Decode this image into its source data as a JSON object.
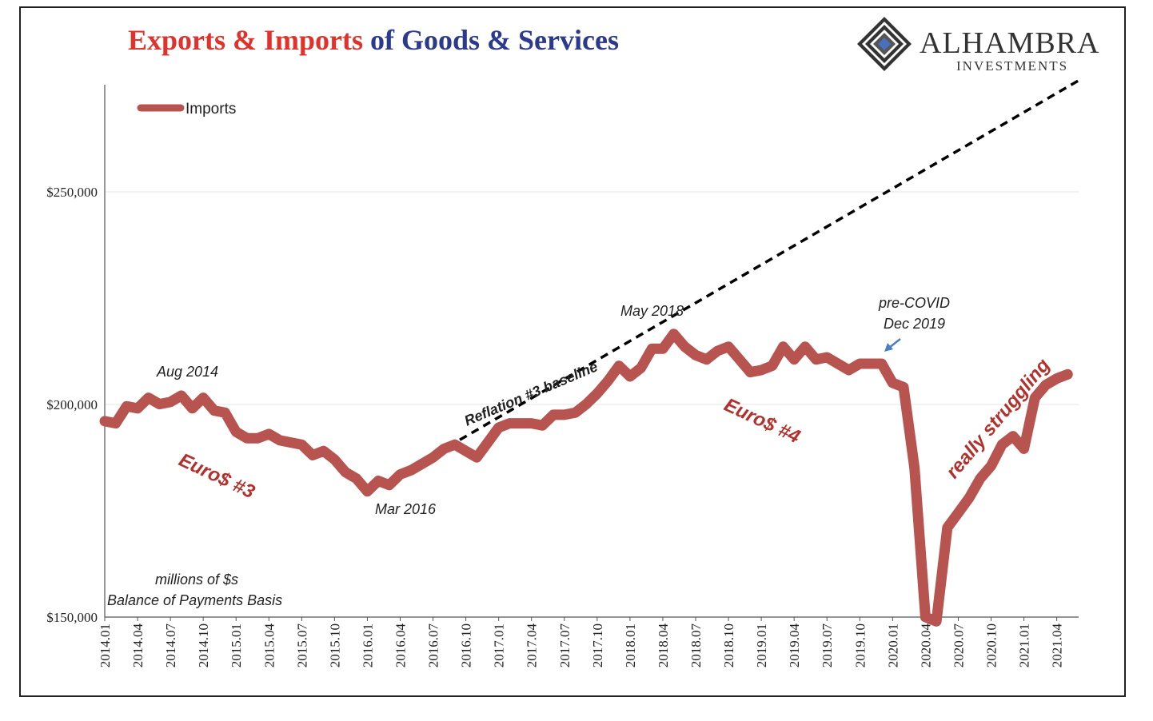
{
  "title": {
    "part1": "Exports & Imports",
    "part2": " of Goods & Services",
    "color_part1": "#e0322a",
    "color_part2": "#2b3a8c"
  },
  "logo": {
    "main": "ALHAMBRA",
    "sub": "INVESTMENTS"
  },
  "chart_data": {
    "type": "line",
    "title": "Exports & Imports of Goods & Services",
    "xlabel": "",
    "ylabel": "",
    "ylim": [
      150000,
      275000
    ],
    "yticks": [
      {
        "value": 150000,
        "label": "$150,000"
      },
      {
        "value": 200000,
        "label": "$200,000"
      },
      {
        "value": 250000,
        "label": "$250,000"
      }
    ],
    "x_tick_labels": [
      "2014.01",
      "2014.04",
      "2014.07",
      "2014.10",
      "2015.01",
      "2015.04",
      "2015.07",
      "2015.10",
      "2016.01",
      "2016.04",
      "2016.07",
      "2016.10",
      "2017.01",
      "2017.04",
      "2017.07",
      "2017.10",
      "2018.01",
      "2018.04",
      "2018.07",
      "2018.10",
      "2019.01",
      "2019.04",
      "2019.07",
      "2019.10",
      "2020.01",
      "2020.04",
      "2020.07",
      "2020.10",
      "2021.01",
      "2021.04"
    ],
    "legend": {
      "position": "top-left",
      "entries": [
        "Imports"
      ]
    },
    "series": [
      {
        "name": "Imports",
        "color": "#b85450",
        "start": "2014.01",
        "values": [
          196000,
          195500,
          199500,
          199000,
          201500,
          200000,
          200500,
          202000,
          199000,
          201500,
          198500,
          198000,
          193500,
          192000,
          192000,
          193000,
          191500,
          191000,
          190500,
          188000,
          189000,
          187000,
          184000,
          182500,
          179500,
          182000,
          181000,
          183500,
          184500,
          186000,
          187500,
          189500,
          190500,
          189000,
          187500,
          191000,
          194500,
          195500,
          195500,
          195500,
          195000,
          197500,
          197500,
          198000,
          200000,
          202500,
          205500,
          209000,
          206500,
          208500,
          213000,
          213000,
          216500,
          213500,
          211500,
          210500,
          212500,
          213500,
          210500,
          207500,
          208000,
          209000,
          213500,
          210500,
          213500,
          210500,
          211000,
          209500,
          208000,
          209500,
          209500,
          209500,
          205000,
          204000,
          185000,
          150000,
          149000,
          171000,
          174500,
          178000,
          182500,
          185500,
          190500,
          192500,
          189500,
          201500,
          204500,
          206000,
          207000
        ]
      },
      {
        "name": "Reflation #3 baseline",
        "style": "dashed",
        "color": "#000000",
        "start": "2016.03",
        "end": "2021.06",
        "start_value": 182000,
        "end_value": 276000
      }
    ],
    "annotations": {
      "aug2014": "Aug 2014",
      "mar2016": "Mar 2016",
      "may2018": "May 2018",
      "precovid1": "pre-COVID",
      "precovid2": "Dec 2019",
      "reflation": "Reflation #3 baseline",
      "euro3": "Euro$ #3",
      "euro4": "Euro$ #4",
      "struggling": "really struggling",
      "units1": "millions of $s",
      "units2": "Balance of Payments Basis"
    }
  }
}
